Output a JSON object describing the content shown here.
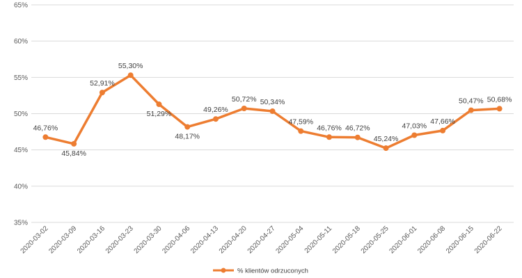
{
  "chart_data": {
    "type": "line",
    "title": "",
    "xlabel": "",
    "ylabel": "",
    "ylim": [
      35,
      65
    ],
    "y_ticks": [
      "35%",
      "40%",
      "45%",
      "50%",
      "55%",
      "60%",
      "65%"
    ],
    "y_tick_values": [
      35,
      40,
      45,
      50,
      55,
      60,
      65
    ],
    "grid": "horizontal",
    "legend_position": "bottom",
    "categories": [
      "2020-03-02",
      "2020-03-09",
      "2020-03-16",
      "2020-03-23",
      "2020-03-30",
      "2020-04-06",
      "2020-04-13",
      "2020-04-20",
      "2020-04-27",
      "2020-05-04",
      "2020-05-11",
      "2020-05-18",
      "2020-05-25",
      "2020-06-01",
      "2020-06-08",
      "2020-06-15",
      "2020-06-22"
    ],
    "series": [
      {
        "name": "% klientów odrzuconych",
        "color": "#ed7d31",
        "values": [
          46.76,
          45.84,
          52.91,
          55.3,
          51.29,
          48.17,
          49.26,
          50.72,
          50.34,
          47.59,
          46.76,
          46.72,
          45.24,
          47.03,
          47.66,
          50.47,
          50.68
        ],
        "labels": [
          "46,76%",
          "45,84%",
          "52,91%",
          "55,30%",
          "51,29%",
          "48,17%",
          "49,26%",
          "50,72%",
          "50,34%",
          "47,59%",
          "46,76%",
          "46,72%",
          "45,24%",
          "47,03%",
          "47,66%",
          "50,47%",
          "50,68%"
        ]
      }
    ]
  }
}
